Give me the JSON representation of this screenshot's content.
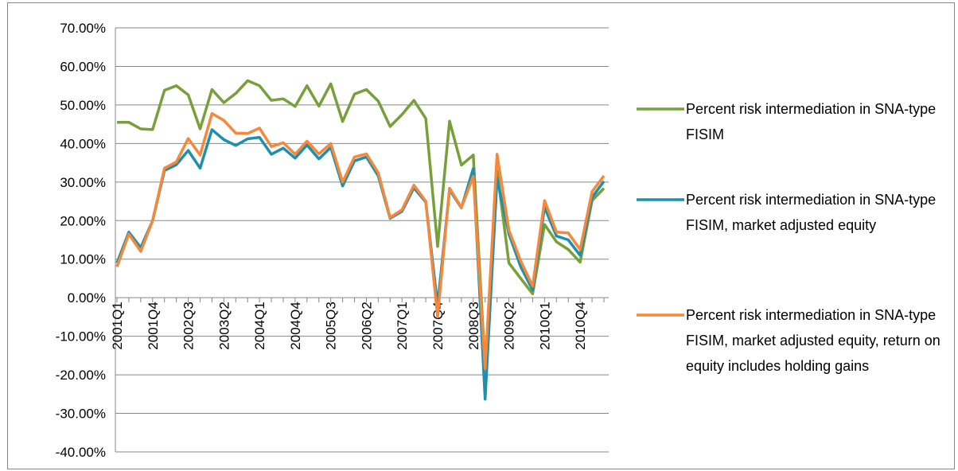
{
  "chart_data": {
    "type": "line",
    "categories": [
      "2001Q1",
      null,
      null,
      "2001Q4",
      null,
      null,
      "2002Q3",
      null,
      null,
      "2003Q2",
      null,
      null,
      "2004Q1",
      null,
      null,
      "2004Q4",
      null,
      null,
      "2005Q3",
      null,
      null,
      "2006Q2",
      null,
      null,
      "2007Q1",
      null,
      null,
      "2007Q4",
      null,
      null,
      "2008Q3",
      null,
      null,
      "2009Q2",
      null,
      null,
      "2010Q1",
      null,
      null,
      "2010Q4",
      null,
      null
    ],
    "series": [
      {
        "name": "Percent risk intermediation in SNA-type FISIM",
        "color": "#77a03a",
        "values": [
          45.5,
          45.5,
          43.8,
          43.6,
          53.8,
          55,
          52.6,
          43.8,
          54,
          50.6,
          53,
          56.3,
          55,
          51.2,
          51.6,
          49.6,
          55,
          49.7,
          55.5,
          45.7,
          52.8,
          54,
          51,
          44.4,
          47.5,
          51.2,
          46.5,
          13.3,
          45.8,
          34.4,
          37,
          -18,
          33,
          9,
          5,
          1,
          19,
          14.5,
          12.5,
          9.2,
          25.2,
          28.4
        ]
      },
      {
        "name": "Percent risk intermediation in SNA-type FISIM, market adjusted equity",
        "color": "#1f8fab",
        "values": [
          9,
          17,
          13,
          20,
          33,
          34.5,
          38.2,
          33.6,
          43.6,
          41,
          39.5,
          41.2,
          41.6,
          37.2,
          38.8,
          36.2,
          39.6,
          36,
          39,
          29,
          35.5,
          36.5,
          31.6,
          20.6,
          22.4,
          28.5,
          24.8,
          -2,
          28,
          23.3,
          33.5,
          -26.3,
          31,
          16.5,
          8,
          2,
          23.5,
          16,
          15,
          11,
          26,
          30.2
        ]
      },
      {
        "name": "Percent risk intermediation in SNA-type FISIM, market adjusted equity, return on equity includes holding gains",
        "color": "#f5883a",
        "values": [
          8,
          16.5,
          12,
          20,
          33.6,
          35.2,
          41.3,
          37,
          47.8,
          46,
          42.7,
          42.6,
          44,
          39.2,
          40.2,
          37.2,
          40.6,
          37.3,
          40,
          30,
          36.5,
          37.3,
          32.4,
          20.8,
          22.8,
          29.2,
          25,
          -5,
          28.4,
          23.4,
          31.5,
          -18.4,
          37.2,
          17.5,
          9.5,
          3,
          25.2,
          17,
          16.8,
          12.5,
          27.5,
          31.6
        ]
      }
    ],
    "ylim": [
      -40,
      70
    ],
    "yticks": [
      {
        "value": -40,
        "label": "-40.00%"
      },
      {
        "value": -30,
        "label": "-30.00%"
      },
      {
        "value": -20,
        "label": "-20.00%"
      },
      {
        "value": -10,
        "label": "-10.00%"
      },
      {
        "value": 0,
        "label": "0.00%"
      },
      {
        "value": 10,
        "label": "10.00%"
      },
      {
        "value": 20,
        "label": "20.00%"
      },
      {
        "value": 30,
        "label": "30.00%"
      },
      {
        "value": 40,
        "label": "40.00%"
      },
      {
        "value": 50,
        "label": "50.00%"
      },
      {
        "value": 60,
        "label": "60.00%"
      },
      {
        "value": 70,
        "label": "70.00%"
      }
    ],
    "grid": true,
    "legend": "right"
  }
}
